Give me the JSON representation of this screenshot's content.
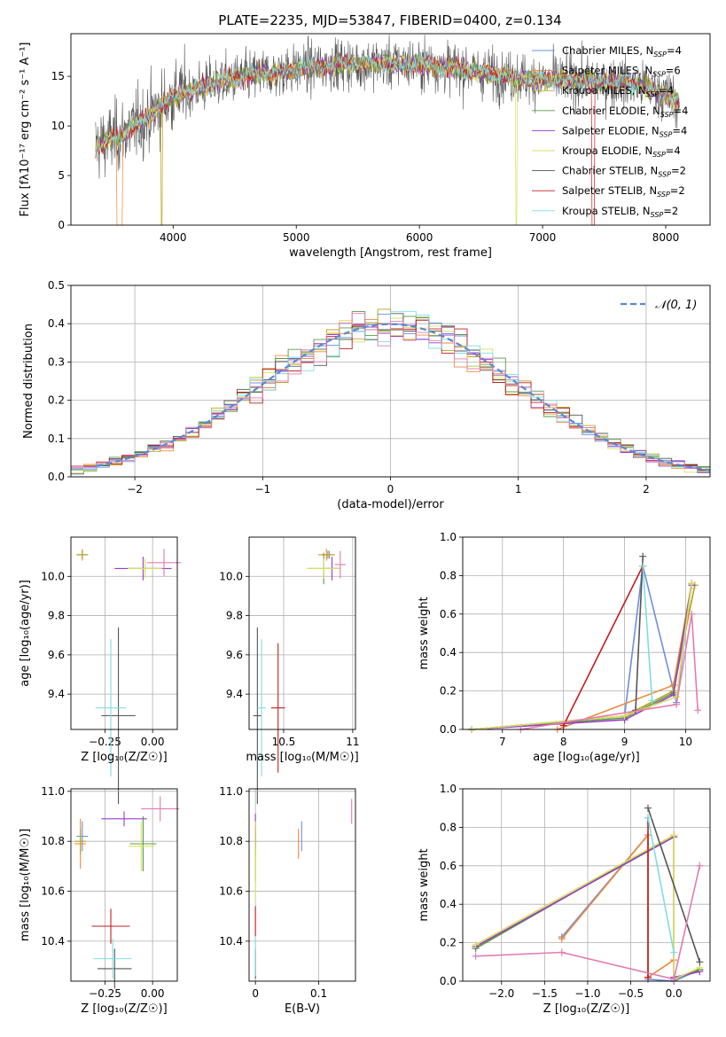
{
  "figure_title": "PLATE=2235, MJD=53847, FIBERID=0400, z=0.134",
  "colors": {
    "Chabrier MILES": "#6f8fe0",
    "Salpeter MILES": "#ee8a3c",
    "Kroupa MILES": "#b8a21c",
    "Chabrier ELODIE": "#5a9a45",
    "Salpeter ELODIE": "#9b3dc8",
    "Kroupa ELODIE": "#d8e060",
    "Chabrier STELIB": "#555555",
    "Salpeter STELIB": "#c41e1e",
    "Kroupa STELIB": "#80dde0",
    "extra": "#e37bb2"
  },
  "legend_entries": [
    {
      "model": "Chabrier MILES",
      "label": "Chabrier MILES, N",
      "sub": "SSP",
      "tail": "=4"
    },
    {
      "model": "Salpeter MILES",
      "label": "Salpeter MILES, N",
      "sub": "SSP",
      "tail": "=6"
    },
    {
      "model": "Kroupa MILES",
      "label": "Kroupa MILES, N",
      "sub": "SSP",
      "tail": "=4"
    },
    {
      "model": "Chabrier ELODIE",
      "label": "Chabrier ELODIE, N",
      "sub": "SSP",
      "tail": "=4"
    },
    {
      "model": "Salpeter ELODIE",
      "label": "Salpeter ELODIE, N",
      "sub": "SSP",
      "tail": "=4"
    },
    {
      "model": "Kroupa ELODIE",
      "label": "Kroupa ELODIE, N",
      "sub": "SSP",
      "tail": "=4"
    },
    {
      "model": "Chabrier STELIB",
      "label": "Chabrier STELIB, N",
      "sub": "SSP",
      "tail": "=2"
    },
    {
      "model": "Salpeter STELIB",
      "label": "Salpeter STELIB, N",
      "sub": "SSP",
      "tail": "=2"
    },
    {
      "model": "Kroupa STELIB",
      "label": "Kroupa STELIB, N",
      "sub": "SSP",
      "tail": "=2"
    }
  ],
  "chart_data": [
    {
      "id": "spectrum",
      "type": "line",
      "xlabel": "wavelength [Angstrom, rest frame]",
      "ylabel": "Flux [fλ10⁻¹⁷ erg cm⁻² s⁻¹ A⁻¹]",
      "xlim": [
        3170,
        8360
      ],
      "ylim": [
        0,
        19.3
      ],
      "xticks": [
        4000,
        5000,
        6000,
        7000,
        8000
      ],
      "yticks": [
        0,
        5,
        10,
        15
      ],
      "grid": false,
      "legend": "right",
      "data_range": [
        3370,
        8110
      ],
      "continuum_points": [
        [
          3370,
          8.0
        ],
        [
          3600,
          9.2
        ],
        [
          3800,
          11.0
        ],
        [
          4000,
          13.0
        ],
        [
          4300,
          14.2
        ],
        [
          4600,
          15.0
        ],
        [
          4900,
          15.5
        ],
        [
          5300,
          16.2
        ],
        [
          5700,
          16.3
        ],
        [
          6100,
          16.2
        ],
        [
          6500,
          15.4
        ],
        [
          6900,
          14.7
        ],
        [
          7300,
          14.6
        ],
        [
          7600,
          14.4
        ],
        [
          7800,
          14.0
        ],
        [
          8000,
          13.1
        ],
        [
          8110,
          12.5
        ]
      ],
      "dropouts": [
        {
          "model": "Salpeter MILES",
          "x": [
            3540,
            3590
          ],
          "y": 0
        },
        {
          "model": "Kroupa MILES",
          "x": [
            3900,
            3915
          ],
          "y": 0
        },
        {
          "model": "Kroupa ELODIE",
          "x": [
            6780,
            6795
          ],
          "y": 0
        },
        {
          "model": "Salpeter STELIB",
          "x": [
            7400,
            7420
          ],
          "y": 0
        }
      ]
    },
    {
      "id": "residuals",
      "type": "step-histogram",
      "xlabel": "(data-model)/error",
      "ylabel": "Normed distribution",
      "xlim": [
        -2.5,
        2.5
      ],
      "ylim": [
        0,
        0.5
      ],
      "xticks": [
        -2,
        -1,
        0,
        1,
        2
      ],
      "yticks": [
        0.0,
        0.1,
        0.2,
        0.3,
        0.4,
        0.5
      ],
      "grid": true,
      "legend": "top-right",
      "reference_label": "𝒩(0, 1)",
      "bin_edges_range": [
        -2.5,
        2.5
      ],
      "bins": 50,
      "reference_curve": "normal(0,1)"
    },
    {
      "id": "age_vs_Z",
      "type": "errorbar",
      "xlabel": "Z [log₁₀(Z/Z☉)]",
      "ylabel": "age  [log₁₀(age/yr)]",
      "xlim": [
        -0.43,
        0.13
      ],
      "ylim": [
        9.22,
        10.2
      ],
      "xticks": [
        -0.25,
        0.0
      ],
      "xticklabels": [
        "−0.25",
        "0.00"
      ],
      "yticks": [
        9.4,
        9.6,
        9.8,
        10.0
      ],
      "grid": true,
      "points": [
        {
          "model": "Chabrier MILES",
          "x": -0.37,
          "y": 10.11,
          "xerr": 0.03,
          "yerr": 0.02
        },
        {
          "model": "Salpeter MILES",
          "x": -0.37,
          "y": 10.11,
          "xerr": 0.03,
          "yerr": 0.03
        },
        {
          "model": "Kroupa MILES",
          "x": -0.37,
          "y": 10.11,
          "xerr": 0.03,
          "yerr": 0.02
        },
        {
          "model": "Chabrier ELODIE",
          "x": -0.04,
          "y": 10.04,
          "xerr": 0.09,
          "yerr": 0.02
        },
        {
          "model": "Salpeter ELODIE",
          "x": -0.05,
          "y": 10.04,
          "xerr": 0.15,
          "yerr": 0.06
        },
        {
          "model": "Kroupa ELODIE",
          "x": -0.04,
          "y": 10.04,
          "xerr": 0.09,
          "yerr": 0.05
        },
        {
          "model": "Chabrier STELIB",
          "x": -0.18,
          "y": 9.29,
          "xerr": 0.09,
          "yerr": 0.45
        },
        {
          "model": "Kroupa STELIB",
          "x": -0.22,
          "y": 9.33,
          "xerr": 0.08,
          "yerr": 0.35
        },
        {
          "model": "extra",
          "x": 0.06,
          "y": 10.07,
          "xerr": 0.09,
          "yerr": 0.07
        }
      ]
    },
    {
      "id": "age_vs_mass",
      "type": "errorbar",
      "xlabel": "mass [log₁₀(M/M☉)]",
      "ylabel": "",
      "xlim": [
        10.25,
        11.02
      ],
      "ylim": [
        9.22,
        10.2
      ],
      "xticks": [
        10.5,
        11.0
      ],
      "yticks": [
        9.4,
        9.6,
        9.8,
        10.0
      ],
      "grid": true,
      "points": [
        {
          "model": "Chabrier MILES",
          "x": 10.83,
          "y": 10.11,
          "xerr": 0.03,
          "yerr": 0.02
        },
        {
          "model": "Salpeter MILES",
          "x": 10.81,
          "y": 10.11,
          "xerr": 0.06,
          "yerr": 0.03
        },
        {
          "model": "Kroupa MILES",
          "x": 10.82,
          "y": 10.11,
          "xerr": 0.05,
          "yerr": 0.02
        },
        {
          "model": "Chabrier ELODIE",
          "x": 10.79,
          "y": 10.04,
          "xerr": 0.12,
          "yerr": 0.08
        },
        {
          "model": "Salpeter ELODIE",
          "x": 10.85,
          "y": 10.04,
          "xerr": 0.05,
          "yerr": 0.06
        },
        {
          "model": "Kroupa ELODIE",
          "x": 10.79,
          "y": 10.04,
          "xerr": 0.12,
          "yerr": 0.05
        },
        {
          "model": "Chabrier STELIB",
          "x": 10.31,
          "y": 9.29,
          "xerr": 0.03,
          "yerr": 0.45
        },
        {
          "model": "Salpeter STELIB",
          "x": 10.46,
          "y": 9.33,
          "xerr": 0.05,
          "yerr": 0.33
        },
        {
          "model": "Kroupa STELIB",
          "x": 10.34,
          "y": 9.33,
          "xerr": 0.03,
          "yerr": 0.35
        },
        {
          "model": "extra",
          "x": 10.91,
          "y": 10.06,
          "xerr": 0.04,
          "yerr": 0.07
        }
      ]
    },
    {
      "id": "weight_vs_age",
      "type": "line",
      "xlabel": "age  [log₁₀(age/yr)]",
      "ylabel": "mass weight",
      "xlim": [
        6.35,
        10.4
      ],
      "ylim": [
        0,
        1.0
      ],
      "xticks": [
        7,
        8,
        9,
        10
      ],
      "yticks": [
        0.0,
        0.2,
        0.4,
        0.6,
        0.8,
        1.0
      ],
      "grid": true,
      "series": [
        {
          "model": "Chabrier MILES",
          "x": [
            6.5,
            9.0,
            9.3,
            9.85,
            10.1
          ],
          "y": [
            0.0,
            0.07,
            0.85,
            0.14,
            0.76
          ]
        },
        {
          "model": "Salpeter MILES",
          "x": [
            7.9,
            9.8,
            10.1
          ],
          "y": [
            0.0,
            0.23,
            0.76
          ]
        },
        {
          "model": "Kroupa MILES",
          "x": [
            6.5,
            9.0,
            9.8,
            10.15
          ],
          "y": [
            0.0,
            0.07,
            0.2,
            0.75
          ]
        },
        {
          "model": "Chabrier ELODIE",
          "x": [
            6.5,
            9.0,
            9.8,
            10.1
          ],
          "y": [
            0.0,
            0.06,
            0.19,
            0.76
          ]
        },
        {
          "model": "Salpeter ELODIE",
          "x": [
            6.5,
            9.0,
            9.8,
            10.1
          ],
          "y": [
            0.0,
            0.05,
            0.18,
            0.75
          ]
        },
        {
          "model": "Kroupa ELODIE",
          "x": [
            6.5,
            9.0,
            9.85,
            10.1
          ],
          "y": [
            0.0,
            0.07,
            0.17,
            0.76
          ]
        },
        {
          "model": "Chabrier STELIB",
          "x": [
            9.18,
            9.3
          ],
          "y": [
            0.1,
            0.9
          ]
        },
        {
          "model": "Salpeter STELIB",
          "x": [
            8.0,
            9.3
          ],
          "y": [
            0.02,
            0.85
          ]
        },
        {
          "model": "Kroupa STELIB",
          "x": [
            9.3,
            9.45
          ],
          "y": [
            0.85,
            0.15
          ]
        },
        {
          "model": "extra",
          "x": [
            7.3,
            9.85,
            10.1,
            10.2
          ],
          "y": [
            0.0,
            0.13,
            0.6,
            0.1
          ]
        }
      ]
    },
    {
      "id": "mass_vs_Z",
      "type": "errorbar",
      "xlabel": "Z [log₁₀(Z/Z☉)]",
      "ylabel": "mass [log₁₀(M/M☉)]",
      "xlim": [
        -0.43,
        0.13
      ],
      "ylim": [
        10.24,
        11.01
      ],
      "xticks": [
        -0.25,
        0.0
      ],
      "xticklabels": [
        "−0.25",
        "0.00"
      ],
      "yticks": [
        10.4,
        10.6,
        10.8,
        11.0
      ],
      "grid": true,
      "points": [
        {
          "model": "Chabrier MILES",
          "x": -0.37,
          "y": 10.82,
          "xerr": 0.03,
          "yerr": 0.06
        },
        {
          "model": "Salpeter MILES",
          "x": -0.38,
          "y": 10.79,
          "xerr": 0.03,
          "yerr": 0.1
        },
        {
          "model": "Kroupa MILES",
          "x": -0.38,
          "y": 10.8,
          "xerr": 0.03,
          "yerr": 0.05
        },
        {
          "model": "Chabrier ELODIE",
          "x": -0.05,
          "y": 10.79,
          "xerr": 0.07,
          "yerr": 0.11
        },
        {
          "model": "Salpeter ELODIE",
          "x": -0.15,
          "y": 10.89,
          "xerr": 0.12,
          "yerr": 0.03
        },
        {
          "model": "Kroupa ELODIE",
          "x": -0.06,
          "y": 10.78,
          "xerr": 0.07,
          "yerr": 0.1
        },
        {
          "model": "Chabrier STELIB",
          "x": -0.2,
          "y": 10.29,
          "xerr": 0.09,
          "yerr": 0.08
        },
        {
          "model": "Salpeter STELIB",
          "x": -0.22,
          "y": 10.46,
          "xerr": 0.1,
          "yerr": 0.07
        },
        {
          "model": "Kroupa STELIB",
          "x": -0.21,
          "y": 10.33,
          "xerr": 0.1,
          "yerr": 0.08
        },
        {
          "model": "extra",
          "x": 0.04,
          "y": 10.93,
          "xerr": 0.1,
          "yerr": 0.05
        }
      ]
    },
    {
      "id": "mass_vs_EBV",
      "type": "errorbar",
      "xlabel": "E(B-V)",
      "ylabel": "",
      "xlim": [
        -0.01,
        0.158
      ],
      "ylim": [
        10.24,
        11.01
      ],
      "xticks": [
        0.0,
        0.1
      ],
      "yticks": [
        10.4,
        10.6,
        10.8,
        11.0
      ],
      "grid": true,
      "points": [
        {
          "model": "Chabrier MILES",
          "x": 0.073,
          "y": 10.82,
          "xerr": 0.0,
          "yerr": 0.06
        },
        {
          "model": "Salpeter MILES",
          "x": 0.068,
          "y": 10.79,
          "xerr": 0.0,
          "yerr": 0.06
        },
        {
          "model": "Kroupa MILES",
          "x": 0.0,
          "y": 10.8,
          "xerr": 0.0,
          "yerr": 0.06
        },
        {
          "model": "Chabrier ELODIE",
          "x": 0.0,
          "y": 10.75,
          "xerr": 0.0,
          "yerr": 0.11
        },
        {
          "model": "Salpeter ELODIE",
          "x": 0.0,
          "y": 10.84,
          "xerr": 0.0,
          "yerr": 0.07
        },
        {
          "model": "Kroupa ELODIE",
          "x": 0.0,
          "y": 10.72,
          "xerr": 0.0,
          "yerr": 0.16
        },
        {
          "model": "Chabrier STELIB",
          "x": 0.0,
          "y": 10.31,
          "xerr": 0.0,
          "yerr": 0.06
        },
        {
          "model": "Salpeter STELIB",
          "x": 0.0,
          "y": 10.48,
          "xerr": 0.0,
          "yerr": 0.06
        },
        {
          "model": "Kroupa STELIB",
          "x": 0.0,
          "y": 10.34,
          "xerr": 0.0,
          "yerr": 0.08
        },
        {
          "model": "extra",
          "x": 0.152,
          "y": 10.92,
          "xerr": 0.0,
          "yerr": 0.05
        }
      ]
    },
    {
      "id": "weight_vs_Z",
      "type": "line",
      "xlabel": "Z [log₁₀(Z/Z☉)]",
      "ylabel": "mass weight",
      "xlim": [
        -2.45,
        0.42
      ],
      "ylim": [
        0,
        1.0
      ],
      "xticks": [
        -2.0,
        -1.5,
        -1.0,
        -0.5,
        0.0
      ],
      "xticklabels": [
        "−2.0",
        "−1.5",
        "−1.0",
        "−0.5",
        "0.0"
      ],
      "yticks": [
        0.0,
        0.2,
        0.4,
        0.6,
        0.8,
        1.0
      ],
      "grid": true,
      "series": [
        {
          "model": "Chabrier MILES",
          "x": [
            -1.3,
            -0.3,
            -0.3,
            0.0,
            0.3
          ],
          "y": [
            0.23,
            0.76,
            0.01,
            0.0,
            0.06
          ]
        },
        {
          "model": "Salpeter MILES",
          "x": [
            -1.3,
            -0.3,
            -0.3,
            0.0
          ],
          "y": [
            0.22,
            0.76,
            0.02,
            0.11
          ]
        },
        {
          "model": "Kroupa MILES",
          "x": [
            -2.3,
            0.0,
            0.0,
            0.3
          ],
          "y": [
            0.18,
            0.75,
            0.01,
            0.06
          ]
        },
        {
          "model": "Chabrier ELODIE",
          "x": [
            -2.3,
            0.0,
            0.0,
            0.3
          ],
          "y": [
            0.17,
            0.76,
            0.01,
            0.06
          ]
        },
        {
          "model": "Salpeter ELODIE",
          "x": [
            -2.3,
            0.0,
            0.0,
            0.3
          ],
          "y": [
            0.18,
            0.75,
            0.02,
            0.05
          ]
        },
        {
          "model": "Kroupa ELODIE",
          "x": [
            -2.3,
            0.0,
            0.0,
            0.3
          ],
          "y": [
            0.19,
            0.76,
            0.01,
            0.07
          ]
        },
        {
          "model": "Chabrier STELIB",
          "x": [
            -0.3,
            0.3
          ],
          "y": [
            0.9,
            0.1
          ]
        },
        {
          "model": "Salpeter STELIB",
          "x": [
            -0.3,
            -0.3
          ],
          "y": [
            0.85,
            0.02
          ]
        },
        {
          "model": "Kroupa STELIB",
          "x": [
            -0.3,
            0.0
          ],
          "y": [
            0.85,
            0.15
          ]
        },
        {
          "model": "extra",
          "x": [
            -2.3,
            -1.3,
            0.0,
            0.3
          ],
          "y": [
            0.13,
            0.15,
            0.01,
            0.6
          ]
        }
      ]
    }
  ]
}
